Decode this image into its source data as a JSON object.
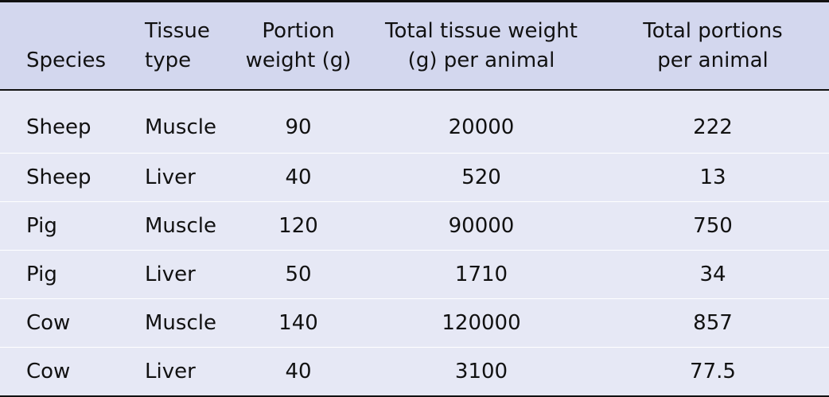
{
  "table": {
    "headers": [
      [
        "Species"
      ],
      [
        "Tissue",
        "type"
      ],
      [
        "Portion",
        "weight (g)"
      ],
      [
        "Total tissue weight",
        "(g) per animal"
      ],
      [
        "Total portions",
        "per animal"
      ]
    ],
    "rows": [
      [
        "Sheep",
        "Muscle",
        "90",
        "20000",
        "222"
      ],
      [
        "Sheep",
        "Liver",
        "40",
        "520",
        "13"
      ],
      [
        "Pig",
        "Muscle",
        "120",
        "90000",
        "750"
      ],
      [
        "Pig",
        "Liver",
        "50",
        "1710",
        "34"
      ],
      [
        "Cow",
        "Muscle",
        "140",
        "120000",
        "857"
      ],
      [
        "Cow",
        "Liver",
        "40",
        "3100",
        "77.5"
      ]
    ],
    "colors": {
      "header_bg": "#d3d7ee",
      "row_bg": "#e6e8f5",
      "rule": "#111111"
    }
  }
}
